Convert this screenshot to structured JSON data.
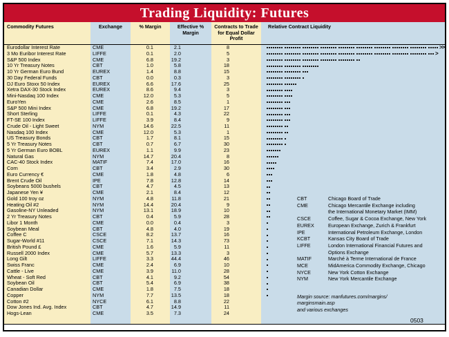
{
  "title": "Trading Liquidity: Futures",
  "colors": {
    "banner_red": "#c50f2c",
    "tan_column": "#f9eec3",
    "blue_column": "#c9dce9",
    "border_black": "#000000",
    "dot_black": "#1a1a1a"
  },
  "columns": [
    "Commodity Futures",
    "Exchange",
    "% Margin",
    "Effective % Margin",
    "Contracts to Trade for Equal Dollar Profit",
    "Relative Contract Liquidity"
  ],
  "rows": [
    {
      "name": "Eurodollar Interest Rate",
      "exchange": "CME",
      "margin": "0.1",
      "effective": "2.1",
      "contracts": "8",
      "dots": 77,
      "arrow": ">>"
    },
    {
      "name": "3 Mo Euribor Interest Rate",
      "exchange": "LIFFE",
      "margin": "0.1",
      "effective": "2.0",
      "contracts": "5",
      "dots": 75,
      "arrow": ">"
    },
    {
      "name": "S&P 500 Index",
      "exchange": "CME",
      "margin": "6.8",
      "effective": "19.2",
      "contracts": "3",
      "dots": 42,
      "arrow": ""
    },
    {
      "name": "10 Yr Treasury Notes",
      "exchange": "CBT",
      "margin": "1.0",
      "effective": "5.8",
      "contracts": "18",
      "dots": 24,
      "arrow": ""
    },
    {
      "name": "10 Yr German Euro Bund",
      "exchange": "EUREX",
      "margin": "1.4",
      "effective": "8.8",
      "contracts": "15",
      "dots": 19,
      "arrow": ""
    },
    {
      "name": "30 Day Federal Funds",
      "exchange": "CBT",
      "margin": "0.0",
      "effective": "0.3",
      "contracts": "3",
      "dots": 17,
      "arrow": ""
    },
    {
      "name": "DJ Euro Stoxx 50 Index",
      "exchange": "EUREX",
      "margin": "6.6",
      "effective": "17.6",
      "contracts": "25",
      "dots": 14,
      "arrow": ""
    },
    {
      "name": "Xetra DAX-30 Stock Index",
      "exchange": "EUREX",
      "margin": "8.6",
      "effective": "9.4",
      "contracts": "3",
      "dots": 12,
      "arrow": ""
    },
    {
      "name": "Mini-Nasdaq 100 Index",
      "exchange": "CME",
      "margin": "12.0",
      "effective": "5.3",
      "contracts": "5",
      "dots": 12,
      "arrow": ""
    },
    {
      "name": "EuroYen",
      "exchange": "CME",
      "margin": "2.6",
      "effective": "8.5",
      "contracts": "1",
      "dots": 11,
      "arrow": ""
    },
    {
      "name": "S&P 500 Mini Index",
      "exchange": "CME",
      "margin": "6.8",
      "effective": "19.2",
      "contracts": "17",
      "dots": 11,
      "arrow": ""
    },
    {
      "name": "Short Sterling",
      "exchange": "LIFFE",
      "margin": "0.1",
      "effective": "4.3",
      "contracts": "22",
      "dots": 11,
      "arrow": ""
    },
    {
      "name": "FT-SE 100 Index",
      "exchange": "LIFFE",
      "margin": "3.9",
      "effective": "8.4",
      "contracts": "9",
      "dots": 11,
      "arrow": ""
    },
    {
      "name": "Crude Oil - Light Sweet",
      "exchange": "NYM",
      "margin": "14.6",
      "effective": "22.5",
      "contracts": "11",
      "dots": 10,
      "arrow": ""
    },
    {
      "name": "Nasdaq 100 Index",
      "exchange": "CME",
      "margin": "12.0",
      "effective": "5.3",
      "contracts": "1",
      "dots": 10,
      "arrow": ""
    },
    {
      "name": "US Treasury Bonds",
      "exchange": "CBT",
      "margin": "1.7",
      "effective": "8.1",
      "contracts": "15",
      "dots": 9,
      "arrow": ""
    },
    {
      "name": "5 Yr Treasury Notes",
      "exchange": "CBT",
      "margin": "0.7",
      "effective": "6.7",
      "contracts": "30",
      "dots": 9,
      "arrow": ""
    },
    {
      "name": "5 Yr German Euro BOBL",
      "exchange": "EUREX",
      "margin": "1.1",
      "effective": "9.9",
      "contracts": "23",
      "dots": 7,
      "arrow": ""
    },
    {
      "name": "Natural Gas",
      "exchange": "NYM",
      "margin": "14.7",
      "effective": "20.4",
      "contracts": "8",
      "dots": 6,
      "arrow": ""
    },
    {
      "name": "CAC-40 Stock Index",
      "exchange": "MATIF",
      "margin": "7.4",
      "effective": "17.0",
      "contracts": "16",
      "dots": 5,
      "arrow": ""
    },
    {
      "name": "Corn",
      "exchange": "CBT",
      "margin": "3.4",
      "effective": "2.9",
      "contracts": "30",
      "dots": 4,
      "arrow": ""
    },
    {
      "name": "Euro Currency €",
      "exchange": "CME",
      "margin": "1.8",
      "effective": "4.8",
      "contracts": "6",
      "dots": 3,
      "arrow": ""
    },
    {
      "name": "Brent Crude Oil",
      "exchange": "IPE",
      "margin": "7.8",
      "effective": "12.8",
      "contracts": "14",
      "dots": 3,
      "arrow": ""
    },
    {
      "name": "Soybeans 5000 bushels",
      "exchange": "CBT",
      "margin": "4.7",
      "effective": "4.5",
      "contracts": "13",
      "dots": 2,
      "arrow": ""
    },
    {
      "name": "Japanese Yen ¥",
      "exchange": "CME",
      "margin": "2.1",
      "effective": "8.4",
      "contracts": "12",
      "dots": 2,
      "arrow": ""
    },
    {
      "name": "Gold 100 troy oz",
      "exchange": "NYM",
      "margin": "4.8",
      "effective": "11.8",
      "contracts": "21",
      "dots": 2,
      "arrow": ""
    },
    {
      "name": "Heating Oil #2",
      "exchange": "NYM",
      "margin": "14.4",
      "effective": "20.4",
      "contracts": "9",
      "dots": 2,
      "arrow": ""
    },
    {
      "name": "Gasoline-NY Unleaded",
      "exchange": "NYM",
      "margin": "13.1",
      "effective": "18.9",
      "contracts": "10",
      "dots": 2,
      "arrow": ""
    },
    {
      "name": "2 Yr Treasury Notes",
      "exchange": "CBT",
      "margin": "0.4",
      "effective": "5.9",
      "contracts": "28",
      "dots": 2,
      "arrow": ""
    },
    {
      "name": "Libor 1 Month",
      "exchange": "CME",
      "margin": "0.0",
      "effective": "0.4",
      "contracts": "3",
      "dots": 1,
      "arrow": ""
    },
    {
      "name": "Soybean Meal",
      "exchange": "CBT",
      "margin": "4.8",
      "effective": "4.0",
      "contracts": "19",
      "dots": 1,
      "arrow": ""
    },
    {
      "name": "Coffee C",
      "exchange": "CSCE",
      "margin": "8.2",
      "effective": "13.7",
      "contracts": "16",
      "dots": 1,
      "arrow": ""
    },
    {
      "name": "Sugar-World #11",
      "exchange": "CSCE",
      "margin": "7.1",
      "effective": "14.3",
      "contracts": "73",
      "dots": 1,
      "arrow": ""
    },
    {
      "name": "British Pound £",
      "exchange": "CME",
      "margin": "1.6",
      "effective": "5.9",
      "contracts": "11",
      "dots": 1,
      "arrow": ""
    },
    {
      "name": "Russell 2000 Index",
      "exchange": "CME",
      "margin": "5.7",
      "effective": "13.3",
      "contracts": "3",
      "dots": 1,
      "arrow": ""
    },
    {
      "name": "Long Gilt",
      "exchange": "LIFFE",
      "margin": "3.3",
      "effective": "44.4",
      "contracts": "46",
      "dots": 1,
      "arrow": ""
    },
    {
      "name": "Swiss Franc",
      "exchange": "CME",
      "margin": "2.4",
      "effective": "6.9",
      "contracts": "10",
      "dots": 1,
      "arrow": ""
    },
    {
      "name": "Cattle - Live",
      "exchange": "CME",
      "margin": "3.9",
      "effective": "11.0",
      "contracts": "28",
      "dots": 1,
      "arrow": ""
    },
    {
      "name": "Wheat - Soft Red",
      "exchange": "CBT",
      "margin": "4.1",
      "effective": "9.2",
      "contracts": "54",
      "dots": 1,
      "arrow": ""
    },
    {
      "name": "Soybean Oil",
      "exchange": "CBT",
      "margin": "5.4",
      "effective": "6.9",
      "contracts": "38",
      "dots": 1,
      "arrow": ""
    },
    {
      "name": "Canadian Dollar",
      "exchange": "CME",
      "margin": "1.8",
      "effective": "7.5",
      "contracts": "18",
      "dots": 1,
      "arrow": ""
    },
    {
      "name": "Copper",
      "exchange": "NYM",
      "margin": "7.7",
      "effective": "13.5",
      "contracts": "18",
      "dots": 1,
      "arrow": ""
    },
    {
      "name": "Cotton #2",
      "exchange": "NYCE",
      "margin": "6.1",
      "effective": "8.8",
      "contracts": "22",
      "dots": 0,
      "arrow": ""
    },
    {
      "name": "Dow Jones Ind. Avg. Index",
      "exchange": "CBT",
      "margin": "4.7",
      "effective": "14.9",
      "contracts": "11",
      "dots": 0,
      "arrow": ""
    },
    {
      "name": "Hogs-Lean",
      "exchange": "CME",
      "margin": "3.5",
      "effective": "7.3",
      "contracts": "24",
      "dots": 0,
      "arrow": ""
    }
  ],
  "legend": [
    {
      "abbr": "CBT",
      "lines": [
        "Chicago Board of Trade"
      ]
    },
    {
      "abbr": "CME",
      "lines": [
        "Chicago Mercantile Exchange including",
        "the International Monetary Market (IMM)"
      ]
    },
    {
      "abbr": "CSCE",
      "lines": [
        "Coffee, Sugar & Cocoa Exchange, New York"
      ]
    },
    {
      "abbr": "EUREX",
      "lines": [
        "European Exchange, Zurich & Frankfurt"
      ]
    },
    {
      "abbr": "IPE",
      "lines": [
        "International Petroleum Exchange, London"
      ]
    },
    {
      "abbr": "KCBT",
      "lines": [
        "Kansas City Board of Trade"
      ]
    },
    {
      "abbr": "LIFFE",
      "lines": [
        "London International Financial Futures and",
        "Options Exchange"
      ]
    },
    {
      "abbr": "MATIF",
      "lines": [
        "Marché à Terme International de France"
      ]
    },
    {
      "abbr": "MCE",
      "lines": [
        "MidAmerica Commodity Exchange, Chicago"
      ]
    },
    {
      "abbr": "NYCE",
      "lines": [
        "New York Cotton Exchange"
      ]
    },
    {
      "abbr": "NYM",
      "lines": [
        "New York Mercantile Exchange"
      ]
    }
  ],
  "source_note": {
    "lines": [
      "Margin source: manfutures.com/margins/",
      "marginsmain.asp",
      "and various exchanges"
    ]
  },
  "date_code": "0503"
}
